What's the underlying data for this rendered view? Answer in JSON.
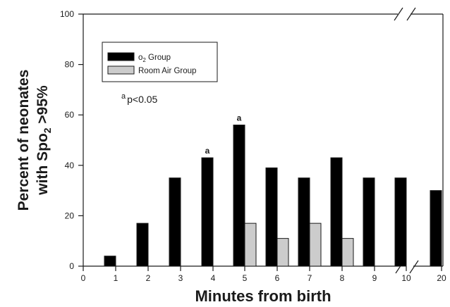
{
  "chart_data": {
    "type": "bar",
    "xlabel": "Minutes from birth",
    "ylabel_line1": "Percent of neonates",
    "ylabel_line2_prefix": "with Spo",
    "ylabel_line2_sub": "2",
    "ylabel_line2_suffix": " >95%",
    "ylim": [
      0,
      100
    ],
    "yticks": [
      "0",
      "20",
      "40",
      "60",
      "80",
      "100"
    ],
    "xticks": [
      "0",
      "1",
      "2",
      "3",
      "4",
      "5",
      "6",
      "7",
      "8",
      "9",
      "10",
      "20"
    ],
    "axis_break": "between 10 and 20",
    "categories": [
      "1",
      "2",
      "3",
      "4",
      "5",
      "6",
      "7",
      "8",
      "9",
      "10",
      "20"
    ],
    "series": [
      {
        "name_prefix": "o",
        "name_sub": "2",
        "name_suffix": " Group",
        "color": "#000000",
        "values": [
          4,
          17,
          35,
          43,
          56,
          39,
          35,
          43,
          35,
          35,
          30
        ]
      },
      {
        "name": "Room Air Group",
        "color": "#cccccc",
        "values": [
          0,
          0,
          0,
          0,
          17,
          11,
          17,
          11,
          0,
          0,
          0
        ]
      }
    ],
    "significance_marks": [
      {
        "category": "4",
        "label": "a"
      },
      {
        "category": "5",
        "label": "a"
      }
    ],
    "footnote_mark": "a",
    "footnote_text": "p<0.05",
    "grid": false,
    "legend_position": "top-left"
  }
}
